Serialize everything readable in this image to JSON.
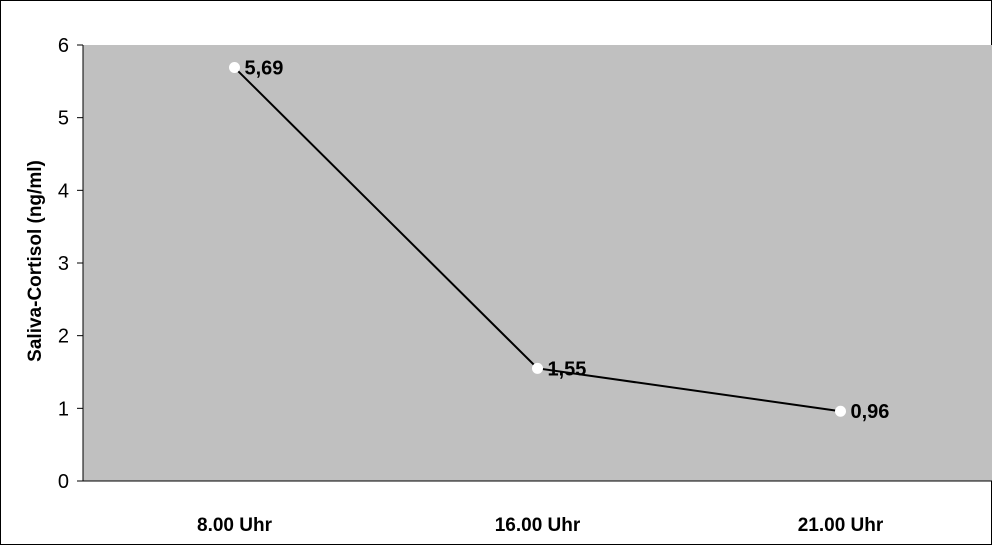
{
  "chart_data": {
    "type": "line",
    "categories": [
      "8.00 Uhr",
      "16.00 Uhr",
      "21.00 Uhr"
    ],
    "series": [
      {
        "values": [
          5.69,
          1.55,
          0.96
        ],
        "data_labels": [
          "5,69",
          "1,55",
          "0,96"
        ]
      }
    ],
    "ylabel": "Saliva-Cortisol (ng/ml)",
    "ylim": [
      0,
      6
    ],
    "yticks": [
      0,
      1,
      2,
      3,
      4,
      5,
      6
    ],
    "grid": false,
    "legend": "none",
    "colors": {
      "plot_background": "#c0c0c0",
      "line": "#000000",
      "marker_fill": "#ffffff"
    }
  }
}
